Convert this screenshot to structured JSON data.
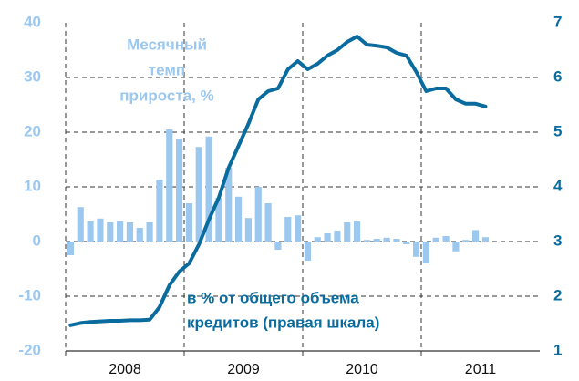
{
  "chart_data": {
    "type": "bar_line",
    "categories": [
      null,
      null,
      null,
      null,
      null,
      null,
      null,
      null,
      null,
      null,
      null,
      null,
      null,
      null,
      null,
      null,
      null,
      null,
      null,
      null,
      null,
      null,
      null,
      null,
      null,
      null,
      null,
      null,
      null,
      null,
      null,
      null,
      null,
      null,
      null,
      null,
      null,
      null,
      null,
      null,
      null,
      null,
      null
    ],
    "year_labels": [
      "2008",
      "2009",
      "2010",
      "2011"
    ],
    "series": [
      {
        "name": "Месячный темп прироста, %",
        "name_lines": [
          "Месячный",
          "темп",
          "прироста, %"
        ],
        "color": "#9cc8f0",
        "kind": "bar",
        "values": [
          -2.5,
          6.3,
          3.7,
          4.2,
          3.5,
          3.7,
          3.5,
          2.5,
          3.5,
          11.3,
          20.5,
          18.8,
          7,
          17.3,
          19.2,
          8,
          13.5,
          8.2,
          4.3,
          10,
          7,
          -1.5,
          4.5,
          4.8,
          -3.5,
          0.8,
          1.5,
          2,
          3.5,
          3.7,
          0.3,
          0.5,
          0.7,
          0.5,
          -0.5,
          -2.8,
          -4,
          0.7,
          1,
          -1.8,
          0.3,
          2.1,
          0.8
        ]
      },
      {
        "name": "в % от общего объема кредитов (правая шкала)",
        "name_lines": [
          "в % от общего объема",
          "кредитов (правая шкала)"
        ],
        "color": "#0a6c9e",
        "kind": "line",
        "axis": "y2",
        "values": [
          1.47,
          1.51,
          1.53,
          1.54,
          1.55,
          1.55,
          1.56,
          1.56,
          1.57,
          1.8,
          2.2,
          2.45,
          2.6,
          2.95,
          3.4,
          3.8,
          4.35,
          4.75,
          5.15,
          5.6,
          5.75,
          5.8,
          6.15,
          6.3,
          6.15,
          6.25,
          6.4,
          6.5,
          6.65,
          6.75,
          6.6,
          6.58,
          6.55,
          6.45,
          6.4,
          6.1,
          5.75,
          5.8,
          5.8,
          5.6,
          5.52,
          5.52,
          5.47
        ]
      }
    ],
    "ylim": [
      -20,
      40
    ],
    "yticks": [
      -20,
      -10,
      0,
      10,
      20,
      30,
      40
    ],
    "y2lim": [
      1,
      7
    ],
    "y2ticks": [
      1,
      2,
      3,
      4,
      5,
      6,
      7
    ],
    "grid": true
  }
}
